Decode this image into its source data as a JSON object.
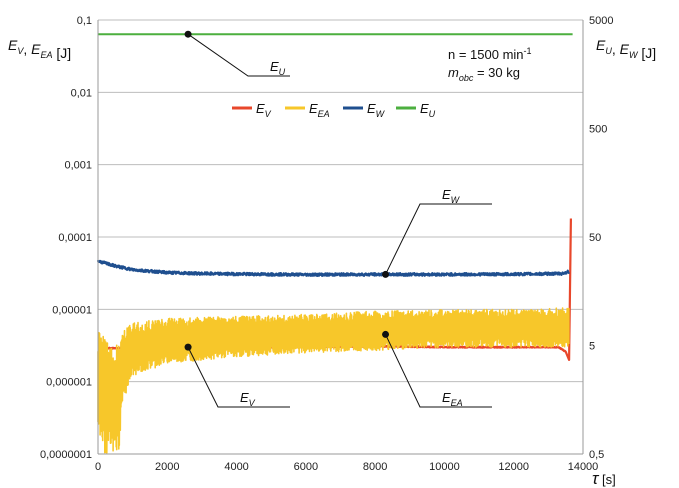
{
  "chart_data": {
    "type": "line",
    "x_axis": {
      "label_main": "τ",
      "label_unit": "[s]",
      "range": [
        0,
        14000
      ],
      "ticks": [
        "0",
        "2000",
        "4000",
        "6000",
        "8000",
        "10000",
        "12000",
        "14000"
      ],
      "tick_values": [
        0,
        2000,
        4000,
        6000,
        8000,
        10000,
        12000,
        14000
      ]
    },
    "y_left": {
      "label_parts": [
        {
          "t": "E",
          "s": "V"
        },
        {
          "t": ", "
        },
        {
          "t": "E",
          "s": "EA"
        },
        {
          "t": " [J]"
        }
      ],
      "scale": "log",
      "range": [
        1e-07,
        0.1
      ],
      "ticks": [
        "0,1",
        "0,01",
        "0,001",
        "0,0001",
        "0,00001",
        "0,000001",
        "0,0000001"
      ],
      "tick_values": [
        0.1,
        0.01,
        0.001,
        0.0001,
        1e-05,
        1e-06,
        1e-07
      ]
    },
    "y_right": {
      "label_parts": [
        {
          "t": "E",
          "s": "U"
        },
        {
          "t": ", "
        },
        {
          "t": "E",
          "s": "W"
        },
        {
          "t": " [J]"
        }
      ],
      "scale": "log",
      "range": [
        0.5,
        5000
      ],
      "ticks": [
        "5000",
        "500",
        "50",
        "5",
        "0,5"
      ],
      "tick_values": [
        5000,
        500,
        50,
        5,
        0.5
      ]
    },
    "conditions": {
      "line1_prefix": "n = 1500 min",
      "line1_sup": "-1",
      "line2_main": "m",
      "line2_sub": "obc",
      "line2_rest": " = 30 kg"
    },
    "legend_position": "top-center",
    "grid": "horizontal",
    "series": [
      {
        "id": "EV",
        "name": "E",
        "name_sub": "V",
        "axis": "left",
        "color": "#e8472b",
        "x": [
          0,
          300,
          1000,
          2000,
          4000,
          6000,
          8000,
          10000,
          12000,
          13300,
          13500,
          13600,
          13650
        ],
        "y": [
          2.8e-06,
          2.9e-06,
          2.9e-06,
          3e-06,
          3e-06,
          3e-06,
          3.1e-06,
          3e-06,
          3e-06,
          3e-06,
          2.6e-06,
          2e-06,
          0.00018
        ]
      },
      {
        "id": "EEA",
        "name": "E",
        "name_sub": "EA",
        "axis": "left",
        "color": "#f7c72a",
        "x": [
          0,
          200,
          400,
          500,
          600,
          700,
          1000,
          2000,
          4000,
          6000,
          8000,
          10000,
          12000,
          13600
        ],
        "y": [
          1e-06,
          3.5e-07,
          2e-07,
          1.2e-07,
          1e-07,
          1.2e-06,
          2.5e-06,
          3.6e-06,
          4e-06,
          4.5e-06,
          4.8e-06,
          5e-06,
          5.2e-06,
          5.5e-06
        ],
        "y_low": [
          2e-07,
          1e-07,
          1e-07,
          1e-07,
          1e-07,
          5e-07,
          1.2e-06,
          1.8e-06,
          2.2e-06,
          2.5e-06,
          2.7e-06,
          3e-06,
          3e-06,
          3e-06
        ],
        "y_high": [
          5e-06,
          4e-06,
          3e-06,
          3e-06,
          3.5e-06,
          5e-06,
          6.5e-06,
          7.5e-06,
          8e-06,
          8.5e-06,
          9.5e-06,
          1e-05,
          1e-05,
          1.05e-05
        ]
      },
      {
        "id": "EW",
        "name": "E",
        "name_sub": "W",
        "axis": "right",
        "color": "#1f4f8f",
        "x": [
          0,
          500,
          1000,
          2000,
          3000,
          4000,
          6000,
          8000,
          10000,
          12000,
          13400,
          13600
        ],
        "y": [
          30,
          27,
          25,
          23.5,
          23,
          22.8,
          22.5,
          22.6,
          22.6,
          22.7,
          23,
          24
        ]
      },
      {
        "id": "EU",
        "name": "E",
        "name_sub": "U",
        "axis": "right",
        "color": "#4caf3f",
        "x": [
          0,
          13700
        ],
        "y": [
          3700,
          3700
        ]
      }
    ],
    "annotations": [
      {
        "series": "EU",
        "label": "E",
        "sub": "U",
        "x": 2600,
        "axis": "right",
        "y": 3700
      },
      {
        "series": "EW",
        "label": "E",
        "sub": "W",
        "x": 8300,
        "axis": "right",
        "y": 22.6
      },
      {
        "series": "EV",
        "label": "E",
        "sub": "V",
        "x": 2600,
        "axis": "left",
        "y": 3e-06
      },
      {
        "series": "EEA",
        "label": "E",
        "sub": "EA",
        "x": 8300,
        "axis": "left",
        "y": 4.5e-06
      }
    ]
  }
}
